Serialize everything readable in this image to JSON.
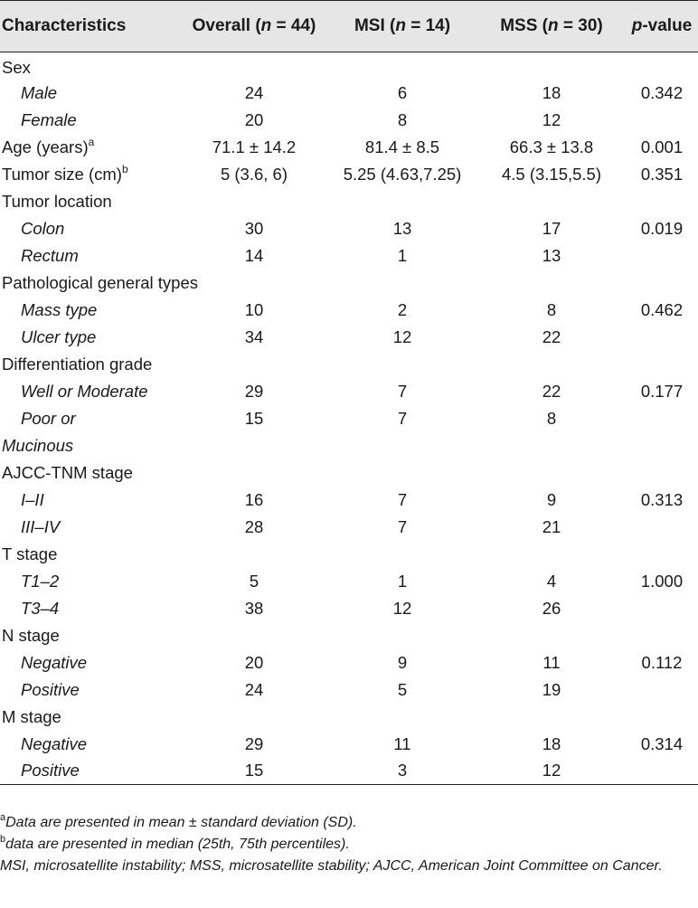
{
  "headers": {
    "c1": "Characteristics",
    "c2_pre": "Overall (",
    "c2_n": "n",
    "c2_post": " = 44)",
    "c3_pre": "MSI (",
    "c3_n": "n",
    "c3_post": " = 14)",
    "c4_pre": "MSS (",
    "c4_n": "n",
    "c4_post": " = 30)",
    "c5_p": "p",
    "c5_post": "-value"
  },
  "rows": [
    {
      "label": "Sex",
      "sub": false,
      "overall": "",
      "msi": "",
      "mss": "",
      "p": ""
    },
    {
      "label": "Male",
      "sub": true,
      "overall": "24",
      "msi": "6",
      "mss": "18",
      "p": "0.342"
    },
    {
      "label": "Female",
      "sub": true,
      "overall": "20",
      "msi": "8",
      "mss": "12",
      "p": ""
    },
    {
      "label": "Age (years)",
      "sup": "a",
      "sub": false,
      "overall": "71.1 ± 14.2",
      "msi": "81.4 ± 8.5",
      "mss": "66.3 ± 13.8",
      "p": "0.001"
    },
    {
      "label": "Tumor size (cm)",
      "sup": "b",
      "sub": false,
      "overall": "5 (3.6, 6)",
      "msi": "5.25 (4.63,7.25)",
      "mss": "4.5 (3.15,5.5)",
      "p": "0.351"
    },
    {
      "label": "Tumor location",
      "sub": false,
      "overall": "",
      "msi": "",
      "mss": "",
      "p": ""
    },
    {
      "label": "Colon",
      "sub": true,
      "overall": "30",
      "msi": "13",
      "mss": "17",
      "p": "0.019"
    },
    {
      "label": "Rectum",
      "sub": true,
      "overall": "14",
      "msi": "1",
      "mss": "13",
      "p": ""
    },
    {
      "label": "Pathological general types",
      "sub": false,
      "overall": "",
      "msi": "",
      "mss": "",
      "p": ""
    },
    {
      "label": "Mass type",
      "sub": true,
      "overall": "10",
      "msi": "2",
      "mss": "8",
      "p": "0.462"
    },
    {
      "label": "Ulcer type",
      "sub": true,
      "overall": "34",
      "msi": "12",
      "mss": "22",
      "p": ""
    },
    {
      "label": "Differentiation grade",
      "sub": false,
      "overall": "",
      "msi": "",
      "mss": "",
      "p": ""
    },
    {
      "label": "Well or Moderate",
      "sub": true,
      "overall": "29",
      "msi": "7",
      "mss": "22",
      "p": "0.177"
    },
    {
      "label": "Poor or",
      "sub": true,
      "overall": "15",
      "msi": "7",
      "mss": "8",
      "p": ""
    },
    {
      "label": "Mucinous",
      "sub": "flush",
      "overall": "",
      "msi": "",
      "mss": "",
      "p": ""
    },
    {
      "label": "AJCC-TNM stage",
      "sub": false,
      "overall": "",
      "msi": "",
      "mss": "",
      "p": ""
    },
    {
      "label": "I–II",
      "sub": true,
      "overall": "16",
      "msi": "7",
      "mss": "9",
      "p": "0.313"
    },
    {
      "label": "III–IV",
      "sub": true,
      "overall": "28",
      "msi": "7",
      "mss": "21",
      "p": ""
    },
    {
      "label": "T stage",
      "sub": false,
      "overall": "",
      "msi": "",
      "mss": "",
      "p": ""
    },
    {
      "label": "T1–2",
      "sub": true,
      "overall": "5",
      "msi": "1",
      "mss": "4",
      "p": "1.000"
    },
    {
      "label": "T3–4",
      "sub": true,
      "overall": "38",
      "msi": "12",
      "mss": "26",
      "p": ""
    },
    {
      "label": "N stage",
      "sub": false,
      "overall": "",
      "msi": "",
      "mss": "",
      "p": ""
    },
    {
      "label": "Negative",
      "sub": true,
      "overall": "20",
      "msi": "9",
      "mss": "11",
      "p": "0.112"
    },
    {
      "label": "Positive",
      "sub": true,
      "overall": "24",
      "msi": "5",
      "mss": "19",
      "p": ""
    },
    {
      "label": "M stage",
      "sub": false,
      "overall": "",
      "msi": "",
      "mss": "",
      "p": ""
    },
    {
      "label": "Negative",
      "sub": true,
      "overall": "29",
      "msi": "11",
      "mss": "18",
      "p": "0.314"
    },
    {
      "label": "Positive",
      "sub": true,
      "overall": "15",
      "msi": "3",
      "mss": "12",
      "p": ""
    }
  ],
  "notes": {
    "a_mark": "a",
    "a_text": "Data are presented in mean ± standard deviation (SD).",
    "b_mark": "b",
    "b_text": "data are presented in median (25th, 75th percentiles).",
    "abbrev": "MSI, microsatellite instability; MSS, microsatellite stability; AJCC, American Joint Committee on Cancer."
  }
}
